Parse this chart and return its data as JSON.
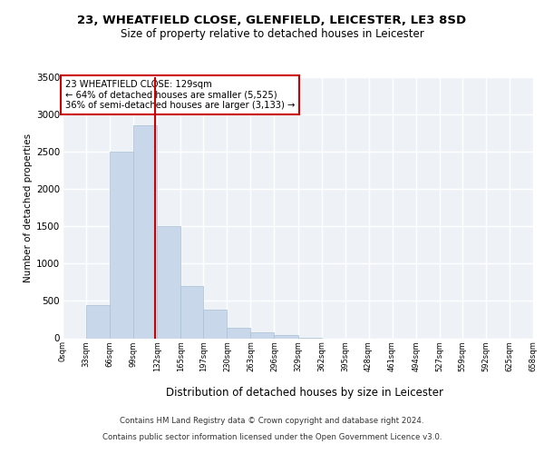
{
  "title1": "23, WHEATFIELD CLOSE, GLENFIELD, LEICESTER, LE3 8SD",
  "title2": "Size of property relative to detached houses in Leicester",
  "xlabel": "Distribution of detached houses by size in Leicester",
  "ylabel": "Number of detached properties",
  "bar_color": "#c8d8ea",
  "bar_edge_color": "#a8c0d4",
  "background_color": "#eef2f7",
  "grid_color": "#ffffff",
  "bin_edges": [
    0,
    33,
    66,
    99,
    132,
    165,
    197,
    230,
    263,
    296,
    329,
    362,
    395,
    428,
    461,
    494,
    527,
    559,
    592,
    625,
    658
  ],
  "bin_labels": [
    "0sqm",
    "33sqm",
    "66sqm",
    "99sqm",
    "132sqm",
    "165sqm",
    "197sqm",
    "230sqm",
    "263sqm",
    "296sqm",
    "329sqm",
    "362sqm",
    "395sqm",
    "428sqm",
    "461sqm",
    "494sqm",
    "527sqm",
    "559sqm",
    "592sqm",
    "625sqm",
    "658sqm"
  ],
  "bar_heights": [
    0,
    450,
    2500,
    2850,
    1500,
    700,
    380,
    140,
    85,
    45,
    10,
    0,
    0,
    0,
    0,
    0,
    0,
    0,
    0,
    0
  ],
  "vline_x": 129,
  "vline_color": "#cc0000",
  "annotation_text": "23 WHEATFIELD CLOSE: 129sqm\n← 64% of detached houses are smaller (5,525)\n36% of semi-detached houses are larger (3,133) →",
  "annotation_box_color": "#ffffff",
  "annotation_box_edge_color": "#cc0000",
  "ylim": [
    0,
    3500
  ],
  "yticks": [
    0,
    500,
    1000,
    1500,
    2000,
    2500,
    3000,
    3500
  ],
  "footer_line1": "Contains HM Land Registry data © Crown copyright and database right 2024.",
  "footer_line2": "Contains public sector information licensed under the Open Government Licence v3.0."
}
